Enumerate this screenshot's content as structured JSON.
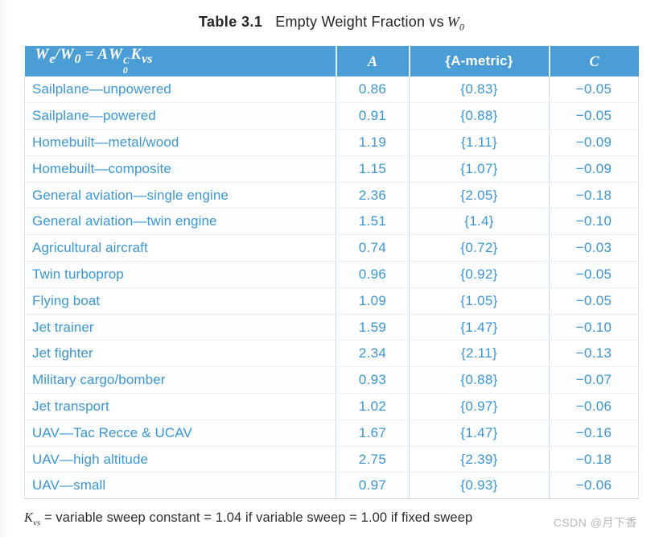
{
  "caption": {
    "bold": "Table 3.1",
    "text": "Empty Weight Fraction vs",
    "var": "W",
    "var_sub": "0"
  },
  "table": {
    "header": {
      "formula": {
        "w1": "W",
        "s1": "e",
        "slash": "/",
        "w2": "W",
        "s2": "0",
        "eq": "=",
        "a": "A",
        "w3": "W",
        "sup": "C",
        "sub": "0",
        "k": "K",
        "ksub": "vs"
      },
      "col_a": "A",
      "col_metric": "{A-metric}",
      "col_c": "C"
    },
    "rows": [
      {
        "type": "Sailplane—unpowered",
        "a": "0.86",
        "a_metric": "{0.83}",
        "c": "−0.05"
      },
      {
        "type": "Sailplane—powered",
        "a": "0.91",
        "a_metric": "{0.88}",
        "c": "−0.05"
      },
      {
        "type": "Homebuilt—metal/wood",
        "a": "1.19",
        "a_metric": "{1.11}",
        "c": "−0.09"
      },
      {
        "type": "Homebuilt—composite",
        "a": "1.15",
        "a_metric": "{1.07}",
        "c": "−0.09"
      },
      {
        "type": "General aviation—single engine",
        "a": "2.36",
        "a_metric": "{2.05}",
        "c": "−0.18"
      },
      {
        "type": "General aviation—twin engine",
        "a": "1.51",
        "a_metric": "{1.4}",
        "c": "−0.10"
      },
      {
        "type": "Agricultural aircraft",
        "a": "0.74",
        "a_metric": "{0.72}",
        "c": "−0.03"
      },
      {
        "type": "Twin turboprop",
        "a": "0.96",
        "a_metric": "{0.92}",
        "c": "−0.05"
      },
      {
        "type": "Flying boat",
        "a": "1.09",
        "a_metric": "{1.05}",
        "c": "−0.05"
      },
      {
        "type": "Jet trainer",
        "a": "1.59",
        "a_metric": "{1.47}",
        "c": "−0.10"
      },
      {
        "type": "Jet fighter",
        "a": "2.34",
        "a_metric": "{2.11}",
        "c": "−0.13"
      },
      {
        "type": "Military cargo/bomber",
        "a": "0.93",
        "a_metric": "{0.88}",
        "c": "−0.07"
      },
      {
        "type": "Jet transport",
        "a": "1.02",
        "a_metric": "{0.97}",
        "c": "−0.06"
      },
      {
        "type": "UAV—Tac Recce & UCAV",
        "a": "1.67",
        "a_metric": "{1.47}",
        "c": "−0.16"
      },
      {
        "type": "UAV—high altitude",
        "a": "2.75",
        "a_metric": "{2.39}",
        "c": "−0.18"
      },
      {
        "type": "UAV—small",
        "a": "0.97",
        "a_metric": "{0.93}",
        "c": "−0.06"
      }
    ],
    "footnote": {
      "k": "K",
      "ksub": "vs",
      "text": "= variable sweep constant = 1.04 if variable sweep = 1.00 if fixed sweep"
    }
  },
  "watermark": "CSDN @月下香",
  "colors": {
    "header_bg": "#4b9ed5",
    "header_text": "#ffffff",
    "body_text": "#3b96d4",
    "footnote_text": "#2c2c2c",
    "watermark_text": "#b7b7b7"
  }
}
